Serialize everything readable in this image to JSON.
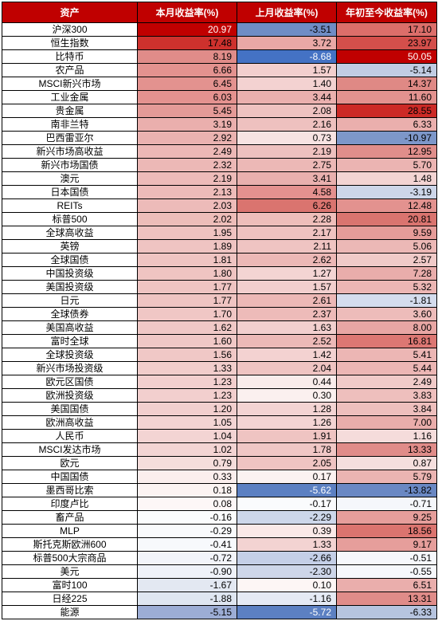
{
  "headers": [
    "资产",
    "本月收益率(%)",
    "上月收益率(%)",
    "年初至今收益率(%)"
  ],
  "header_bg": "#c00000",
  "header_color": "#ffffff",
  "rows": [
    {
      "asset": "沪深300",
      "m": 20.97,
      "p": -3.51,
      "y": 17.1,
      "mc": "#c00000",
      "mcf": "#ffffff",
      "pc": "#6f8dc5",
      "yc": "#dc6e6a"
    },
    {
      "asset": "恒生指数",
      "m": 17.48,
      "p": 3.72,
      "y": 23.97,
      "mc": "#ce312d",
      "pc": "#e9a8a6",
      "yc": "#d44f4b"
    },
    {
      "asset": "比特币",
      "m": 8.19,
      "p": -8.68,
      "y": 50.05,
      "mc": "#e08c89",
      "pc": "#4472c4",
      "pcf": "#ffffff",
      "yc": "#c00000",
      "ycf": "#ffffff"
    },
    {
      "asset": "农产品",
      "m": 6.66,
      "p": 1.57,
      "y": -5.14,
      "mc": "#e3928f",
      "pc": "#f2cfce",
      "yc": "#c1cde3"
    },
    {
      "asset": "MSCI新兴市场",
      "m": 6.45,
      "p": 1.4,
      "y": 14.37,
      "mc": "#e3928f",
      "pc": "#f3d2d1",
      "yc": "#df8985"
    },
    {
      "asset": "工业金属",
      "m": 6.03,
      "p": 3.44,
      "y": 11.6,
      "mc": "#e4928f",
      "pc": "#eab0ae",
      "yc": "#e3928f"
    },
    {
      "asset": "贵金属",
      "m": 5.45,
      "p": 2.08,
      "y": 28.55,
      "mc": "#e49a97",
      "pc": "#eec2c0",
      "yc": "#cc2a26"
    },
    {
      "asset": "南非兰特",
      "m": 3.19,
      "p": 2.16,
      "y": 6.33,
      "mc": "#eaafad",
      "pc": "#eec1bf",
      "yc": "#eaafad"
    },
    {
      "asset": "巴西雷亚尔",
      "m": 2.92,
      "p": 0.73,
      "y": -10.97,
      "mc": "#eab2b0",
      "pc": "#f7e3e2",
      "yc": "#7d97c9"
    },
    {
      "asset": "新兴市场高收益",
      "m": 2.49,
      "p": 2.19,
      "y": 12.95,
      "mc": "#ecb8b6",
      "pc": "#eec1bf",
      "yc": "#e08e8b"
    },
    {
      "asset": "新兴市场国债",
      "m": 2.32,
      "p": 2.75,
      "y": 5.7,
      "mc": "#ecb8b6",
      "pc": "#ecb8b6",
      "yc": "#ebb4b2"
    },
    {
      "asset": "澳元",
      "m": 2.19,
      "p": 3.41,
      "y": 1.48,
      "mc": "#edbbb9",
      "pc": "#e9b0ae",
      "yc": "#f3d4d3"
    },
    {
      "asset": "日本国债",
      "m": 2.13,
      "p": 4.58,
      "y": -3.19,
      "mc": "#edbbb9",
      "pc": "#e4918f",
      "yc": "#cdd6e9"
    },
    {
      "asset": "REITs",
      "m": 2.03,
      "p": 6.26,
      "y": 12.48,
      "mc": "#edbbb9",
      "pc": "#da746f",
      "yc": "#e3928f"
    },
    {
      "asset": "标普500",
      "m": 2.02,
      "p": 2.28,
      "y": 20.81,
      "mc": "#edbdb9",
      "pc": "#eebeba",
      "yc": "#da746f"
    },
    {
      "asset": "全球高收益",
      "m": 1.95,
      "p": 2.17,
      "y": 9.59,
      "mc": "#efc2c0",
      "pc": "#efc2c0",
      "yc": "#e69c99"
    },
    {
      "asset": "英镑",
      "m": 1.89,
      "p": 2.11,
      "y": 5.06,
      "mc": "#efc4c2",
      "pc": "#efc4c2",
      "yc": "#ecb8b6"
    },
    {
      "asset": "全球国债",
      "m": 1.81,
      "p": 2.62,
      "y": 2.57,
      "mc": "#efc4c2",
      "pc": "#ecb8b6",
      "yc": "#f0cac8"
    },
    {
      "asset": "中国投资级",
      "m": 1.8,
      "p": 1.27,
      "y": 7.28,
      "mc": "#efc4c2",
      "pc": "#f3d4d3",
      "yc": "#e9adab"
    },
    {
      "asset": "美国投资级",
      "m": 1.77,
      "p": 1.57,
      "y": 5.32,
      "mc": "#efc4c2",
      "pc": "#f2cfce",
      "yc": "#ecb6b4"
    },
    {
      "asset": "日元",
      "m": 1.77,
      "p": 2.61,
      "y": -1.81,
      "mc": "#efc4c2",
      "pc": "#ecb8b6",
      "yc": "#d4dced"
    },
    {
      "asset": "全球债券",
      "m": 1.7,
      "p": 2.37,
      "y": 3.6,
      "mc": "#f0c7c5",
      "pc": "#edbbb9",
      "yc": "#edbcba"
    },
    {
      "asset": "美国高收益",
      "m": 1.62,
      "p": 1.63,
      "y": 8.0,
      "mc": "#f0c8c6",
      "pc": "#f2cfce",
      "yc": "#e8a6a4"
    },
    {
      "asset": "富时全球",
      "m": 1.6,
      "p": 2.52,
      "y": 16.81,
      "mc": "#f0c8c6",
      "pc": "#ecb9b7",
      "yc": "#dc7773"
    },
    {
      "asset": "全球投资级",
      "m": 1.56,
      "p": 1.42,
      "y": 5.41,
      "mc": "#f0c8c6",
      "pc": "#f3d2d1",
      "yc": "#ecb6b4"
    },
    {
      "asset": "新兴市场投资级",
      "m": 1.33,
      "p": 2.04,
      "y": 5.44,
      "mc": "#f1cdcb",
      "pc": "#efc4c2",
      "yc": "#ecb6b4"
    },
    {
      "asset": "欧元区国债",
      "m": 1.23,
      "p": 0.44,
      "y": 2.49,
      "mc": "#f2cfce",
      "pc": "#f9eceb",
      "yc": "#f0cac8"
    },
    {
      "asset": "欧洲投资级",
      "m": 1.23,
      "p": 0.3,
      "y": 3.83,
      "mc": "#f2cfce",
      "pc": "#fbf0ef",
      "yc": "#eebfbd"
    },
    {
      "asset": "美国国债",
      "m": 1.2,
      "p": 1.28,
      "y": 3.84,
      "mc": "#f2cfce",
      "pc": "#f3d4d3",
      "yc": "#eebfbd"
    },
    {
      "asset": "欧洲高收益",
      "m": 1.05,
      "p": 1.26,
      "y": 7.0,
      "mc": "#f3d4d3",
      "pc": "#f3d4d3",
      "yc": "#e9adab"
    },
    {
      "asset": "人民币",
      "m": 1.04,
      "p": 1.91,
      "y": 1.16,
      "mc": "#f3d4d3",
      "pc": "#efc4c2",
      "yc": "#f5dcdb"
    },
    {
      "asset": "MSCI发达市场",
      "m": 1.02,
      "p": 1.78,
      "y": 13.33,
      "mc": "#f3d4d3",
      "pc": "#f0c7c5",
      "yc": "#e08c89"
    },
    {
      "asset": "欧元",
      "m": 0.79,
      "p": 2.05,
      "y": 0.87,
      "mc": "#f5dddb",
      "pc": "#efc4c2",
      "yc": "#f5dfde"
    },
    {
      "asset": "中国国债",
      "m": 0.33,
      "p": 0.17,
      "y": 5.79,
      "mc": "#fbeeed",
      "pc": "#fbf2f1",
      "yc": "#ebb4b2"
    },
    {
      "asset": "墨西哥比索",
      "m": 0.18,
      "p": -5.62,
      "y": -13.82,
      "mc": "#fcf3f2",
      "pc": "#5c80c2",
      "pcf": "#ffffff",
      "yc": "#6a88c3"
    },
    {
      "asset": "印度卢比",
      "m": 0.08,
      "p": -0.17,
      "y": -0.71,
      "mc": "#fdf7f7",
      "pc": "#fafbfd",
      "yc": "#f5f7fb"
    },
    {
      "asset": "畜产品",
      "m": -0.16,
      "p": -2.29,
      "y": 9.25,
      "mc": "#fbfcfd",
      "pc": "#cdd7ea",
      "yc": "#e69e9b"
    },
    {
      "asset": "MLP",
      "m": -0.29,
      "p": 0.39,
      "y": 18.56,
      "mc": "#f9fafc",
      "pc": "#fae9e8",
      "yc": "#db746f"
    },
    {
      "asset": "斯托克斯欧洲600",
      "m": -0.41,
      "p": 1.33,
      "y": 9.17,
      "mc": "#f7f9fc",
      "pc": "#f3d3d2",
      "yc": "#e69e9b"
    },
    {
      "asset": "标普500大宗商品",
      "m": -0.72,
      "p": -2.66,
      "y": -0.51,
      "mc": "#f2f4fa",
      "pc": "#c4cfe7",
      "yc": "#f6f8fc"
    },
    {
      "asset": "美元",
      "m": -0.9,
      "p": -2.3,
      "y": -0.55,
      "mc": "#eff2f9",
      "pc": "#cdd6e9",
      "yc": "#f6f8fc"
    },
    {
      "asset": "富时100",
      "m": -1.67,
      "p": 0.1,
      "y": 6.51,
      "mc": "#e3e8f2",
      "pc": "#fdf6f5",
      "yc": "#eaaeac"
    },
    {
      "asset": "日经225",
      "m": -1.88,
      "p": -1.16,
      "y": 13.31,
      "mc": "#dfe6f1",
      "pc": "#e5eaf4",
      "yc": "#e08c89"
    },
    {
      "asset": "能源",
      "m": -5.15,
      "p": -5.72,
      "y": -6.33,
      "mc": "#9cadd5",
      "pc": "#5c80c2",
      "pcf": "#ffffff",
      "yc": "#b6c4df"
    }
  ]
}
